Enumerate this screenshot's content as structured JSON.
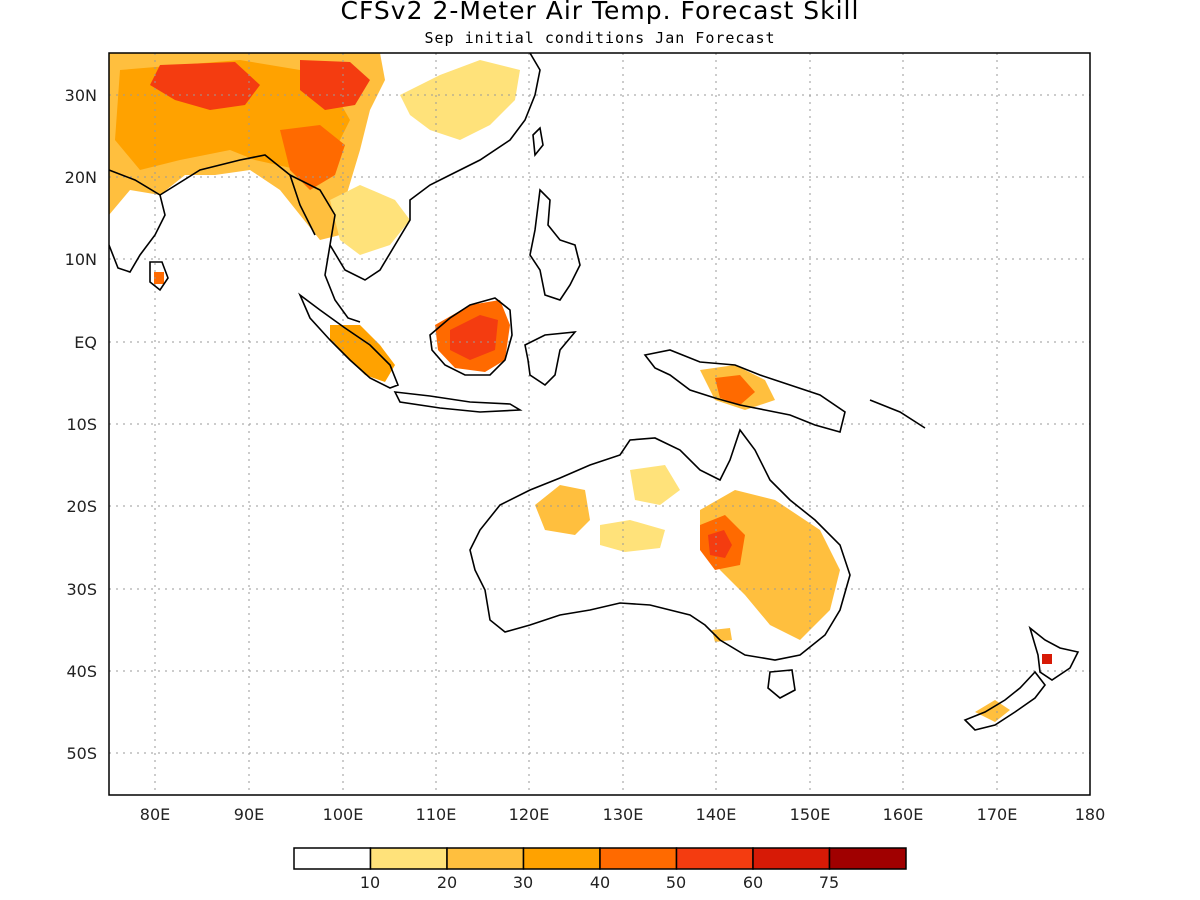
{
  "title": "CFSv2 2-Meter Air Temp. Forecast Skill",
  "subtitle": "Sep initial conditions  Jan Forecast",
  "map": {
    "region": "Indo-Pacific / Australia",
    "lon_range": [
      75,
      180
    ],
    "lat_range": [
      -55,
      35
    ],
    "gridlines": "dotted",
    "lon_ticks": [
      "80E",
      "90E",
      "100E",
      "110E",
      "120E",
      "130E",
      "140E",
      "150E",
      "160E",
      "170E",
      "180"
    ],
    "lat_ticks": [
      "30N",
      "20N",
      "10N",
      "EQ",
      "10S",
      "20S",
      "30S",
      "40S",
      "50S"
    ]
  },
  "colorbar": {
    "colors": [
      "#ffffff",
      "#ffe27a",
      "#ffbf3e",
      "#ffa200",
      "#ff6a00",
      "#f43c10",
      "#d71a06",
      "#a00000"
    ],
    "labels": [
      "10",
      "20",
      "30",
      "40",
      "50",
      "60",
      "75"
    ]
  }
}
